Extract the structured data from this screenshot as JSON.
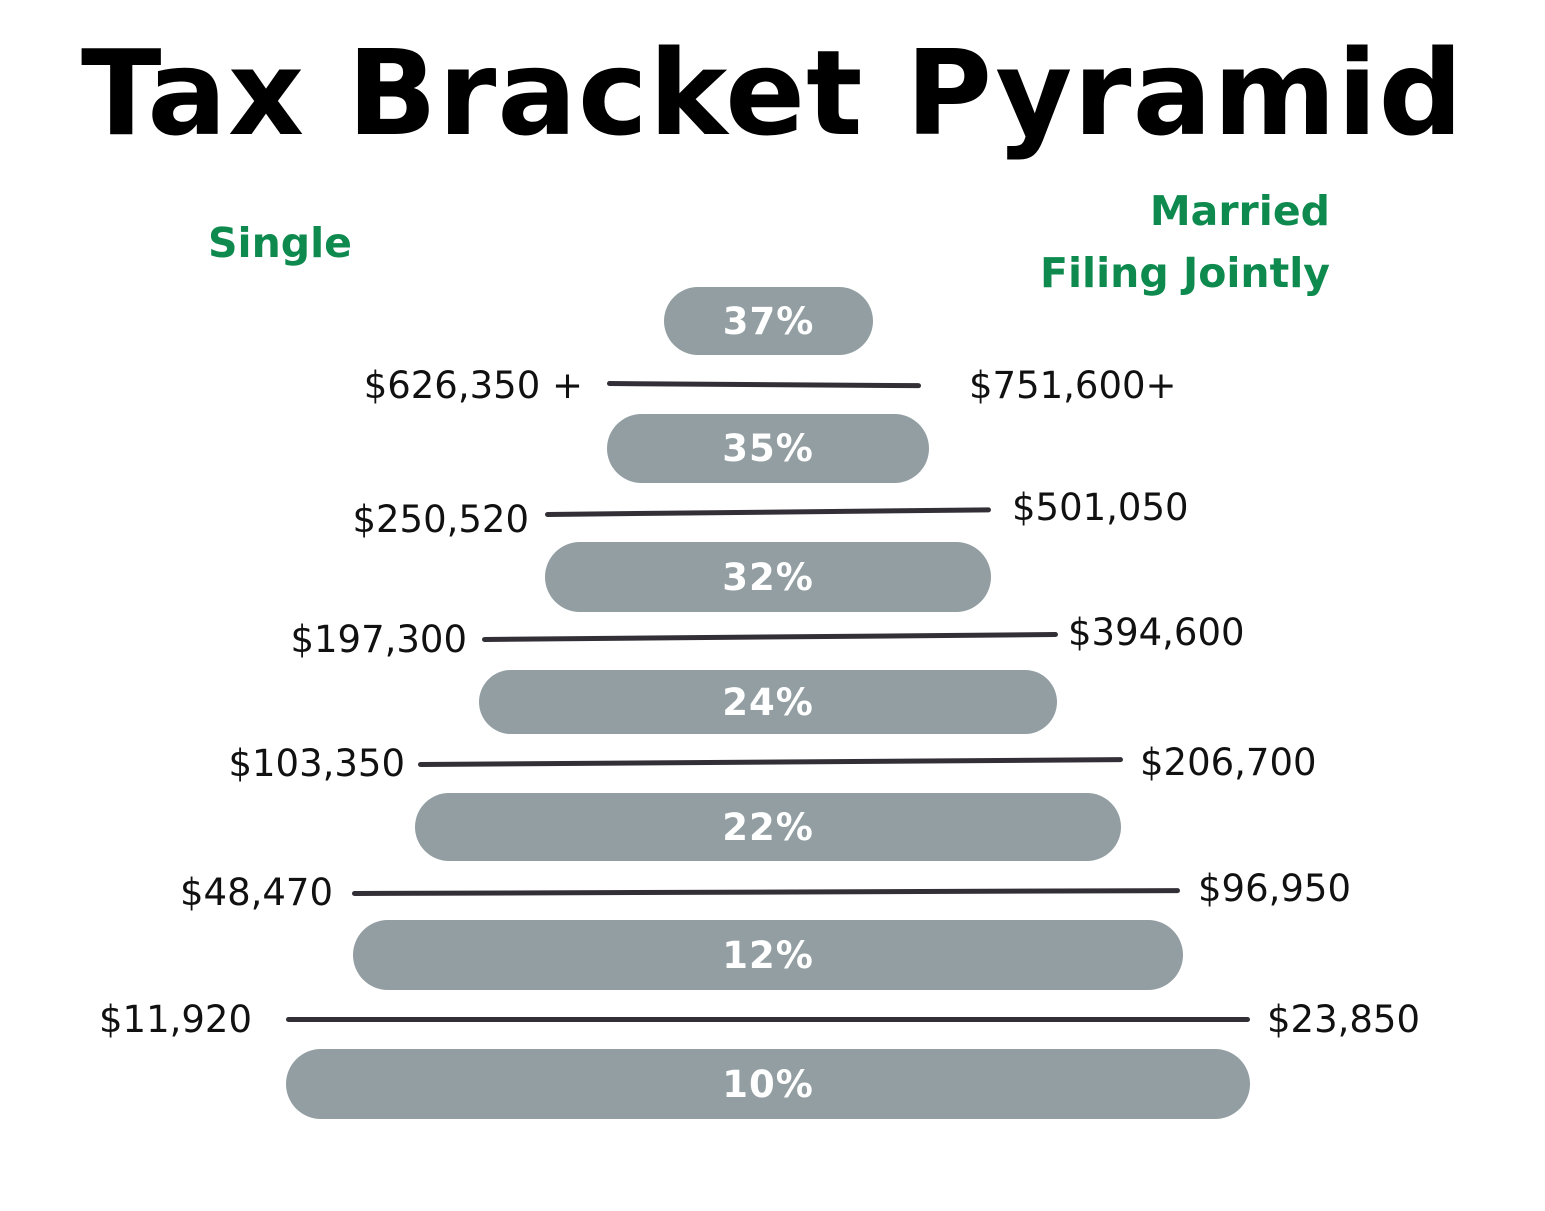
{
  "title": "Tax Bracket Pyramid",
  "legend": {
    "single": "Single",
    "married_line1": "Married",
    "married_line2": "Filing Jointly",
    "color": "#0e8a4f"
  },
  "bar_color": "#929ea2",
  "brackets": [
    {
      "rate": "37%"
    },
    {
      "rate": "35%"
    },
    {
      "rate": "32%"
    },
    {
      "rate": "24%"
    },
    {
      "rate": "22%"
    },
    {
      "rate": "12%"
    },
    {
      "rate": "10%"
    }
  ],
  "thresholds": [
    {
      "single": "$626,350 +",
      "married": "$751,600+"
    },
    {
      "single": "$250,520",
      "married": "$501,050"
    },
    {
      "single": "$197,300",
      "married": "$394,600"
    },
    {
      "single": "$103,350",
      "married": "$206,700"
    },
    {
      "single": "$48,470",
      "married": "$96,950"
    },
    {
      "single": "$11,920",
      "married": "$23,850"
    }
  ]
}
